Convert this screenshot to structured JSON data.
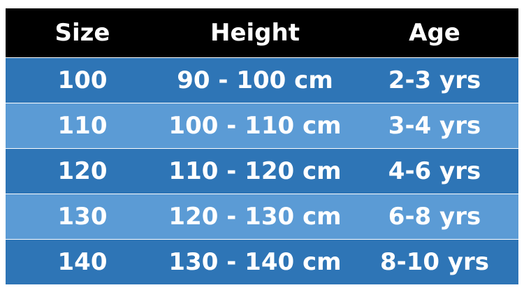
{
  "table": {
    "header": [
      "Size",
      "Height",
      "Age"
    ],
    "rows": [
      [
        "100",
        "90 - 100 cm",
        "2-3 yrs"
      ],
      [
        "110",
        "100 - 110 cm",
        "3-4 yrs"
      ],
      [
        "120",
        "110 - 120 cm",
        "4-6 yrs"
      ],
      [
        "130",
        "120 - 130 cm",
        "6-8 yrs"
      ],
      [
        "140",
        "130 - 140 cm",
        "8-10 yrs"
      ]
    ]
  }
}
